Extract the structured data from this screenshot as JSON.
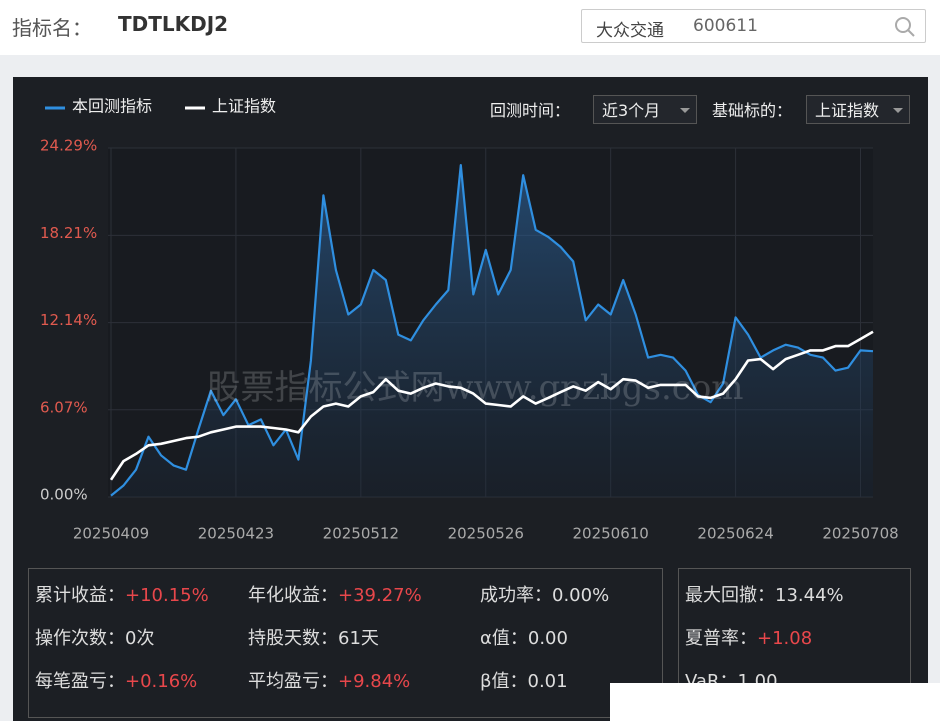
{
  "header": {
    "label": "指标名：",
    "name": "TDTLKDJ2",
    "search_name": "大众交通",
    "search_code": "600611"
  },
  "controls": {
    "period_label": "回测时间：",
    "period": "近3个月",
    "base_label": "基础标的：",
    "base": "上证指数"
  },
  "chart_data": {
    "type": "line",
    "categories": [
      "20250409",
      null,
      null,
      null,
      null,
      null,
      null,
      null,
      null,
      null,
      "20250423",
      null,
      null,
      null,
      null,
      null,
      null,
      null,
      null,
      null,
      "20250512",
      null,
      null,
      null,
      null,
      null,
      null,
      null,
      null,
      null,
      "20250526",
      null,
      null,
      null,
      null,
      null,
      null,
      null,
      null,
      null,
      "20250610",
      null,
      null,
      null,
      null,
      null,
      null,
      null,
      null,
      null,
      "20250624",
      null,
      null,
      null,
      null,
      null,
      null,
      null,
      null,
      null,
      "20250708",
      null
    ],
    "series": [
      {
        "name": "本回测指标",
        "color": "#2f8fe0",
        "values": [
          0.1,
          0.8,
          1.9,
          4.2,
          2.9,
          2.2,
          1.9,
          4.7,
          7.4,
          5.7,
          6.8,
          5.0,
          5.4,
          3.6,
          4.7,
          2.6,
          9.5,
          21.0,
          15.8,
          12.7,
          13.4,
          15.8,
          15.1,
          11.3,
          10.9,
          12.3,
          13.4,
          14.4,
          23.1,
          14.1,
          17.2,
          14.1,
          15.8,
          22.4,
          18.6,
          18.1,
          17.4,
          16.4,
          12.3,
          13.4,
          12.7,
          15.1,
          12.7,
          9.7,
          9.9,
          9.7,
          8.8,
          7.1,
          6.6,
          7.9,
          12.5,
          11.3,
          9.7,
          10.2,
          10.6,
          10.4,
          9.9,
          9.7,
          8.8,
          9.0,
          10.2,
          10.15
        ]
      },
      {
        "name": "上证指数",
        "color": "#ffffff",
        "values": [
          1.2,
          2.5,
          3.0,
          3.6,
          3.7,
          3.9,
          4.1,
          4.2,
          4.5,
          4.7,
          4.9,
          4.9,
          4.9,
          4.8,
          4.7,
          4.5,
          5.6,
          6.3,
          6.5,
          6.3,
          7.0,
          7.3,
          8.2,
          7.4,
          7.2,
          7.6,
          7.9,
          7.7,
          7.6,
          7.2,
          6.5,
          6.4,
          6.3,
          7.0,
          6.5,
          6.9,
          7.3,
          7.7,
          7.4,
          8.0,
          7.5,
          8.2,
          8.1,
          7.6,
          7.8,
          7.8,
          7.8,
          7.0,
          6.9,
          7.2,
          8.2,
          9.5,
          9.6,
          8.9,
          9.6,
          9.9,
          10.2,
          10.2,
          10.5,
          10.5,
          11.0,
          11.5
        ]
      }
    ],
    "ylim": [
      0,
      24.29
    ],
    "yticks": [
      {
        "value": 0,
        "label": "0.00%"
      },
      {
        "value": 6.07,
        "label": "6.07%"
      },
      {
        "value": 12.14,
        "label": "12.14%"
      },
      {
        "value": 18.21,
        "label": "18.21%"
      },
      {
        "value": 24.29,
        "label": "24.29%"
      }
    ],
    "grid": true
  },
  "watermark": "股票指标公式网www.gpzbgs.com",
  "stats": {
    "left": [
      {
        "label": "累计收益：",
        "value": "+10.15%",
        "color": "#e8474b"
      },
      {
        "label": "年化收益：",
        "value": "+39.27%",
        "color": "#e8474b"
      },
      {
        "label": "成功率：",
        "value": "0.00%",
        "color": "#dddddd"
      },
      {
        "label": "操作次数：",
        "value": "0次",
        "color": "#dddddd"
      },
      {
        "label": "持股天数：",
        "value": "61天",
        "color": "#dddddd"
      },
      {
        "label": "α值：",
        "value": "0.00",
        "color": "#dddddd"
      },
      {
        "label": "每笔盈亏：",
        "value": "+0.16%",
        "color": "#e8474b"
      },
      {
        "label": "平均盈亏：",
        "value": "+9.84%",
        "color": "#e8474b"
      },
      {
        "label": "β值：",
        "value": "0.01",
        "color": "#dddddd"
      }
    ],
    "right": [
      {
        "label": "最大回撤：",
        "value": "13.44%",
        "color": "#dddddd"
      },
      {
        "label": "夏普率：",
        "value": "+1.08",
        "color": "#e8474b"
      },
      {
        "label": "VaR：",
        "value": "1.00",
        "color": "#dddddd"
      }
    ]
  }
}
